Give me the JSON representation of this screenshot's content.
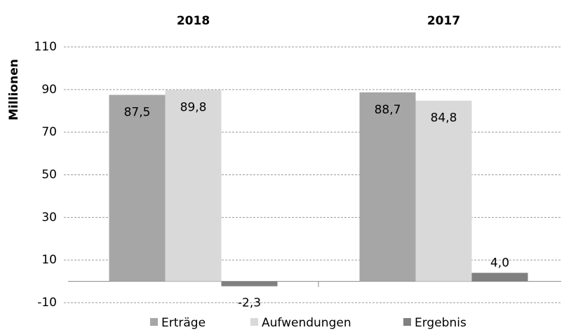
{
  "chart_data": {
    "type": "bar",
    "y_label": "Millionen",
    "categories": [
      "2018",
      "2017"
    ],
    "series": [
      {
        "name": "Erträge",
        "color": "#a6a6a6",
        "values": [
          87.5,
          88.7
        ],
        "value_labels": [
          "87,5",
          "88,7"
        ]
      },
      {
        "name": "Aufwendungen",
        "color": "#d9d9d9",
        "values": [
          89.8,
          84.8
        ],
        "value_labels": [
          "89,8",
          "84,8"
        ]
      },
      {
        "name": "Ergebnis",
        "color": "#808080",
        "values": [
          -2.3,
          4.0
        ],
        "value_labels": [
          "-2,3",
          "4,0"
        ]
      }
    ],
    "ylim": [
      -10,
      110
    ],
    "yticks": [
      -10,
      10,
      30,
      50,
      70,
      90,
      110
    ],
    "grid": true,
    "legend": "bottom"
  }
}
